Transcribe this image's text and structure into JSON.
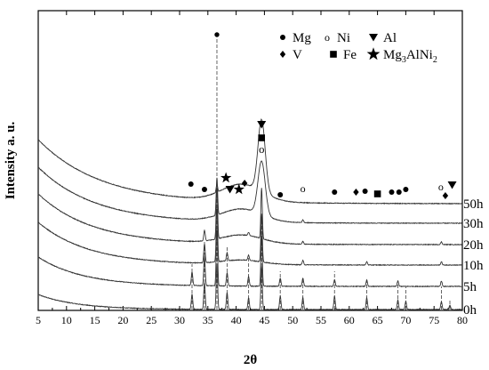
{
  "chart_data": {
    "type": "line",
    "title": "",
    "xlabel": "2θ",
    "ylabel": "Intensity a. u.",
    "xlim": [
      5,
      80
    ],
    "xticks": [
      "5",
      "10",
      "15",
      "20",
      "25",
      "30",
      "35",
      "40",
      "45",
      "50",
      "55",
      "60",
      "65",
      "70",
      "75",
      "80"
    ],
    "grid": false,
    "legend_position": "top-right",
    "series": [
      {
        "name": "0h",
        "baseline": 0.0,
        "bg_amp": 0.28,
        "bg_decay": 7,
        "noise": 0.012,
        "offset_label": "0h",
        "peaks": [
          {
            "x": 32.2,
            "h": 0.28
          },
          {
            "x": 34.4,
            "h": 0.5
          },
          {
            "x": 36.6,
            "h": 0.85
          },
          {
            "x": 38.4,
            "h": 0.32
          },
          {
            "x": 42.2,
            "h": 0.22
          },
          {
            "x": 44.5,
            "h": 0.8
          },
          {
            "x": 47.8,
            "h": 0.25
          },
          {
            "x": 51.8,
            "h": 0.22
          },
          {
            "x": 57.4,
            "h": 0.25
          },
          {
            "x": 63.1,
            "h": 0.22
          },
          {
            "x": 68.6,
            "h": 0.18
          },
          {
            "x": 70.0,
            "h": 0.15
          },
          {
            "x": 76.3,
            "h": 0.15
          },
          {
            "x": 77.8,
            "h": 0.08
          }
        ]
      },
      {
        "name": "5h",
        "baseline": 0.6,
        "bg_amp": 0.55,
        "bg_decay": 8,
        "noise": 0.012,
        "offset_label": "5h",
        "peaks": [
          {
            "x": 32.2,
            "h": 0.25
          },
          {
            "x": 34.4,
            "h": 0.55
          },
          {
            "x": 36.6,
            "h": 1.05
          },
          {
            "x": 38.4,
            "h": 0.25
          },
          {
            "x": 42.2,
            "h": 0.18
          },
          {
            "x": 44.5,
            "h": 0.95
          },
          {
            "x": 47.8,
            "h": 0.15
          },
          {
            "x": 51.8,
            "h": 0.15
          },
          {
            "x": 57.4,
            "h": 0.12
          },
          {
            "x": 63.1,
            "h": 0.12
          },
          {
            "x": 68.6,
            "h": 0.1
          },
          {
            "x": 76.3,
            "h": 0.1
          }
        ]
      },
      {
        "name": "10h",
        "baseline": 1.2,
        "bg_amp": 0.8,
        "bg_decay": 9,
        "noise": 0.012,
        "offset_label": "10h",
        "peaks": [
          {
            "x": 34.4,
            "h": 0.35
          },
          {
            "x": 36.6,
            "h": 1.0
          },
          {
            "x": 38.4,
            "h": 0.15
          },
          {
            "x": 42.2,
            "h": 0.1
          },
          {
            "x": 44.5,
            "h": 0.9
          },
          {
            "x": 51.8,
            "h": 0.08
          },
          {
            "x": 63.1,
            "h": 0.06
          },
          {
            "x": 76.3,
            "h": 0.06
          }
        ]
      },
      {
        "name": "20h",
        "baseline": 1.8,
        "bg_amp": 0.95,
        "bg_decay": 9.5,
        "noise": 0.012,
        "offset_label": "20h",
        "peaks": [
          {
            "x": 34.4,
            "h": 0.2
          },
          {
            "x": 36.6,
            "h": 0.95
          },
          {
            "x": 42.2,
            "h": 0.06
          },
          {
            "x": 44.5,
            "h": 0.95
          },
          {
            "x": 51.8,
            "h": 0.05
          },
          {
            "x": 76.3,
            "h": 0.05
          }
        ]
      },
      {
        "name": "30h",
        "baseline": 2.4,
        "bg_amp": 1.05,
        "bg_decay": 10,
        "noise": 0.012,
        "offset_label": "30h",
        "peaks": [
          {
            "x": 36.6,
            "h": 0.7
          },
          {
            "x": 44.5,
            "h": 1.0
          },
          {
            "x": 51.8,
            "h": 0.05
          }
        ]
      },
      {
        "name": "50h",
        "baseline": 3.1,
        "bg_amp": 1.2,
        "bg_decay": 11,
        "noise": 0.012,
        "offset_label": "50h",
        "peaks": [
          {
            "x": 36.6,
            "h": 0.15
          },
          {
            "x": 44.5,
            "h": 1.35
          }
        ]
      },
      {
        "name": "0h-tall",
        "hidden_label": true,
        "note": "dashed reference line for the strongest Mg reflection at 36.6 degrees"
      }
    ],
    "annotations": {
      "phase_markers_50h": [
        {
          "phase": "Mg",
          "x": 32.0
        },
        {
          "phase": "Mg",
          "x": 34.4
        },
        {
          "phase": "Mg3AlNi2",
          "x": 38.2
        },
        {
          "phase": "Al",
          "x": 38.9
        },
        {
          "phase": "Mg3AlNi2",
          "x": 40.5
        },
        {
          "phase": "V",
          "x": 41.5
        },
        {
          "phase": "Mg",
          "x": 47.8
        },
        {
          "phase": "Ni",
          "x": 51.8
        },
        {
          "phase": "Mg",
          "x": 57.4
        },
        {
          "phase": "V",
          "x": 61.2
        },
        {
          "phase": "Mg",
          "x": 62.8
        },
        {
          "phase": "Fe",
          "x": 65.0
        },
        {
          "phase": "Mg",
          "x": 67.5
        },
        {
          "phase": "Mg",
          "x": 68.8
        },
        {
          "phase": "Mg",
          "x": 70.0
        },
        {
          "phase": "Ni",
          "x": 76.2
        },
        {
          "phase": "V",
          "x": 77.0
        },
        {
          "phase": "Al",
          "x": 78.2
        }
      ],
      "peak_stack_44": [
        {
          "phase": "Al",
          "x": 44.5
        },
        {
          "phase": "Fe",
          "x": 44.5
        },
        {
          "phase": "Ni",
          "x": 44.5
        }
      ],
      "top_marker": {
        "phase": "Mg",
        "x": 36.6
      }
    },
    "legend": [
      {
        "symbol": "circle",
        "label": "Mg"
      },
      {
        "symbol": "open-circle",
        "label": "Ni"
      },
      {
        "symbol": "triangle-down",
        "label": "Al"
      },
      {
        "symbol": "diamond",
        "label": "V"
      },
      {
        "symbol": "square",
        "label": "Fe"
      },
      {
        "symbol": "star",
        "label": "Mg3AlNi2"
      }
    ]
  }
}
